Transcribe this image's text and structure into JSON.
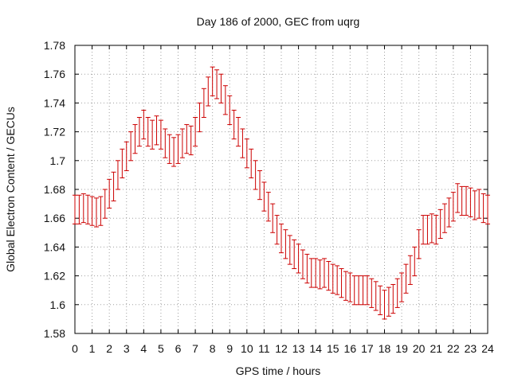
{
  "chart_data": {
    "type": "line",
    "title": "Day 186 of 2000, GEC from uqrg",
    "xlabel": "GPS time / hours",
    "ylabel": "Global Electron Content / GECUs",
    "xlim": [
      0,
      24
    ],
    "ylim": [
      1.58,
      1.78
    ],
    "x_ticks": [
      "0",
      "1",
      "2",
      "3",
      "4",
      "5",
      "6",
      "7",
      "8",
      "9",
      "10",
      "11",
      "12",
      "13",
      "14",
      "15",
      "16",
      "17",
      "18",
      "19",
      "20",
      "21",
      "22",
      "23",
      "24"
    ],
    "y_ticks": [
      "1.58",
      "1.6",
      "1.62",
      "1.64",
      "1.66",
      "1.68",
      "1.7",
      "1.72",
      "1.74",
      "1.76",
      "1.78"
    ],
    "grid": true,
    "error_bar_halfwidth": 0.01,
    "series_color": "#cc0000",
    "grid_color": "#a0a0a0",
    "series": [
      {
        "x": [
          0,
          0.25,
          0.5,
          0.75,
          1,
          1.25,
          1.5,
          1.75,
          2,
          2.25,
          2.5,
          2.75,
          3,
          3.25,
          3.5,
          3.75,
          4,
          4.25,
          4.5,
          4.75,
          5,
          5.25,
          5.5,
          5.75,
          6,
          6.25,
          6.5,
          6.75,
          7,
          7.25,
          7.5,
          7.75,
          8,
          8.25,
          8.5,
          8.75,
          9,
          9.25,
          9.5,
          9.75,
          10,
          10.25,
          10.5,
          10.75,
          11,
          11.25,
          11.5,
          11.75,
          12,
          12.25,
          12.5,
          12.75,
          13,
          13.25,
          13.5,
          13.75,
          14,
          14.25,
          14.5,
          14.75,
          15,
          15.25,
          15.5,
          15.75,
          16,
          16.25,
          16.5,
          16.75,
          17,
          17.25,
          17.5,
          17.75,
          18,
          18.25,
          18.5,
          18.75,
          19,
          19.25,
          19.5,
          19.75,
          20,
          20.25,
          20.5,
          20.75,
          21,
          21.25,
          21.5,
          21.75,
          22,
          22.25,
          22.5,
          22.75,
          23,
          23.25,
          23.5,
          23.75,
          24
        ],
        "y": [
          1.666,
          1.666,
          1.667,
          1.666,
          1.665,
          1.664,
          1.665,
          1.67,
          1.677,
          1.682,
          1.69,
          1.698,
          1.703,
          1.71,
          1.715,
          1.72,
          1.725,
          1.72,
          1.718,
          1.721,
          1.718,
          1.712,
          1.708,
          1.706,
          1.708,
          1.712,
          1.715,
          1.714,
          1.72,
          1.73,
          1.74,
          1.748,
          1.755,
          1.753,
          1.75,
          1.742,
          1.735,
          1.725,
          1.72,
          1.712,
          1.705,
          1.698,
          1.69,
          1.683,
          1.675,
          1.668,
          1.66,
          1.652,
          1.646,
          1.642,
          1.638,
          1.635,
          1.632,
          1.628,
          1.625,
          1.622,
          1.622,
          1.621,
          1.622,
          1.62,
          1.618,
          1.617,
          1.615,
          1.613,
          1.612,
          1.61,
          1.61,
          1.61,
          1.61,
          1.608,
          1.606,
          1.603,
          1.6,
          1.602,
          1.604,
          1.608,
          1.612,
          1.618,
          1.624,
          1.63,
          1.642,
          1.652,
          1.652,
          1.653,
          1.652,
          1.656,
          1.66,
          1.664,
          1.668,
          1.674,
          1.672,
          1.672,
          1.671,
          1.669,
          1.67,
          1.667,
          1.666
        ]
      }
    ]
  }
}
